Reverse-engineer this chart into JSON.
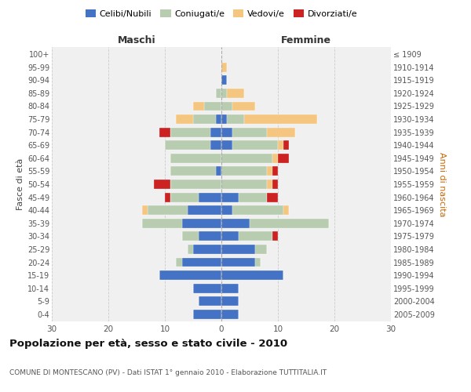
{
  "age_groups": [
    "100+",
    "95-99",
    "90-94",
    "85-89",
    "80-84",
    "75-79",
    "70-74",
    "65-69",
    "60-64",
    "55-59",
    "50-54",
    "45-49",
    "40-44",
    "35-39",
    "30-34",
    "25-29",
    "20-24",
    "15-19",
    "10-14",
    "5-9",
    "0-4"
  ],
  "birth_years": [
    "≤ 1909",
    "1910-1914",
    "1915-1919",
    "1920-1924",
    "1925-1929",
    "1930-1934",
    "1935-1939",
    "1940-1944",
    "1945-1949",
    "1950-1954",
    "1955-1959",
    "1960-1964",
    "1965-1969",
    "1970-1974",
    "1975-1979",
    "1980-1984",
    "1985-1989",
    "1990-1994",
    "1995-1999",
    "2000-2004",
    "2005-2009"
  ],
  "maschi": {
    "celibi": [
      0,
      0,
      0,
      0,
      0,
      1,
      2,
      2,
      0,
      1,
      0,
      4,
      6,
      7,
      4,
      5,
      7,
      11,
      5,
      4,
      5
    ],
    "coniugati": [
      0,
      0,
      0,
      1,
      3,
      4,
      7,
      8,
      9,
      8,
      9,
      5,
      7,
      7,
      3,
      1,
      1,
      0,
      0,
      0,
      0
    ],
    "vedovi": [
      0,
      0,
      0,
      0,
      2,
      3,
      0,
      0,
      0,
      0,
      0,
      0,
      1,
      0,
      0,
      0,
      0,
      0,
      0,
      0,
      0
    ],
    "divorziati": [
      0,
      0,
      0,
      0,
      0,
      0,
      2,
      0,
      0,
      0,
      3,
      1,
      0,
      0,
      0,
      0,
      0,
      0,
      0,
      0,
      0
    ]
  },
  "femmine": {
    "nubili": [
      0,
      0,
      1,
      0,
      0,
      1,
      2,
      2,
      0,
      0,
      0,
      3,
      2,
      5,
      3,
      6,
      6,
      11,
      3,
      3,
      3
    ],
    "coniugate": [
      0,
      0,
      0,
      1,
      2,
      3,
      6,
      8,
      9,
      8,
      8,
      5,
      9,
      14,
      6,
      2,
      1,
      0,
      0,
      0,
      0
    ],
    "vedove": [
      0,
      1,
      0,
      3,
      4,
      13,
      5,
      1,
      1,
      1,
      1,
      0,
      1,
      0,
      0,
      0,
      0,
      0,
      0,
      0,
      0
    ],
    "divorziate": [
      0,
      0,
      0,
      0,
      0,
      0,
      0,
      1,
      2,
      1,
      1,
      2,
      0,
      0,
      1,
      0,
      0,
      0,
      0,
      0,
      0
    ]
  },
  "colors": {
    "celibi_nubili": "#4472C4",
    "coniugati": "#B8CCB0",
    "vedovi": "#F5C67F",
    "divorziati": "#CC2222"
  },
  "xlim": 30,
  "title": "Popolazione per età, sesso e stato civile - 2010",
  "subtitle": "COMUNE DI MONTESCANO (PV) - Dati ISTAT 1° gennaio 2010 - Elaborazione TUTTITALIA.IT",
  "ylabel_left": "Fasce di età",
  "ylabel_right": "Anni di nascita",
  "xlabel_maschi": "Maschi",
  "xlabel_femmine": "Femmine",
  "legend_labels": [
    "Celibi/Nubili",
    "Coniugati/e",
    "Vedovi/e",
    "Divorziati/e"
  ],
  "bg_color": "#ffffff",
  "plot_bg_color": "#f0f0f0",
  "grid_color": "#cccccc"
}
